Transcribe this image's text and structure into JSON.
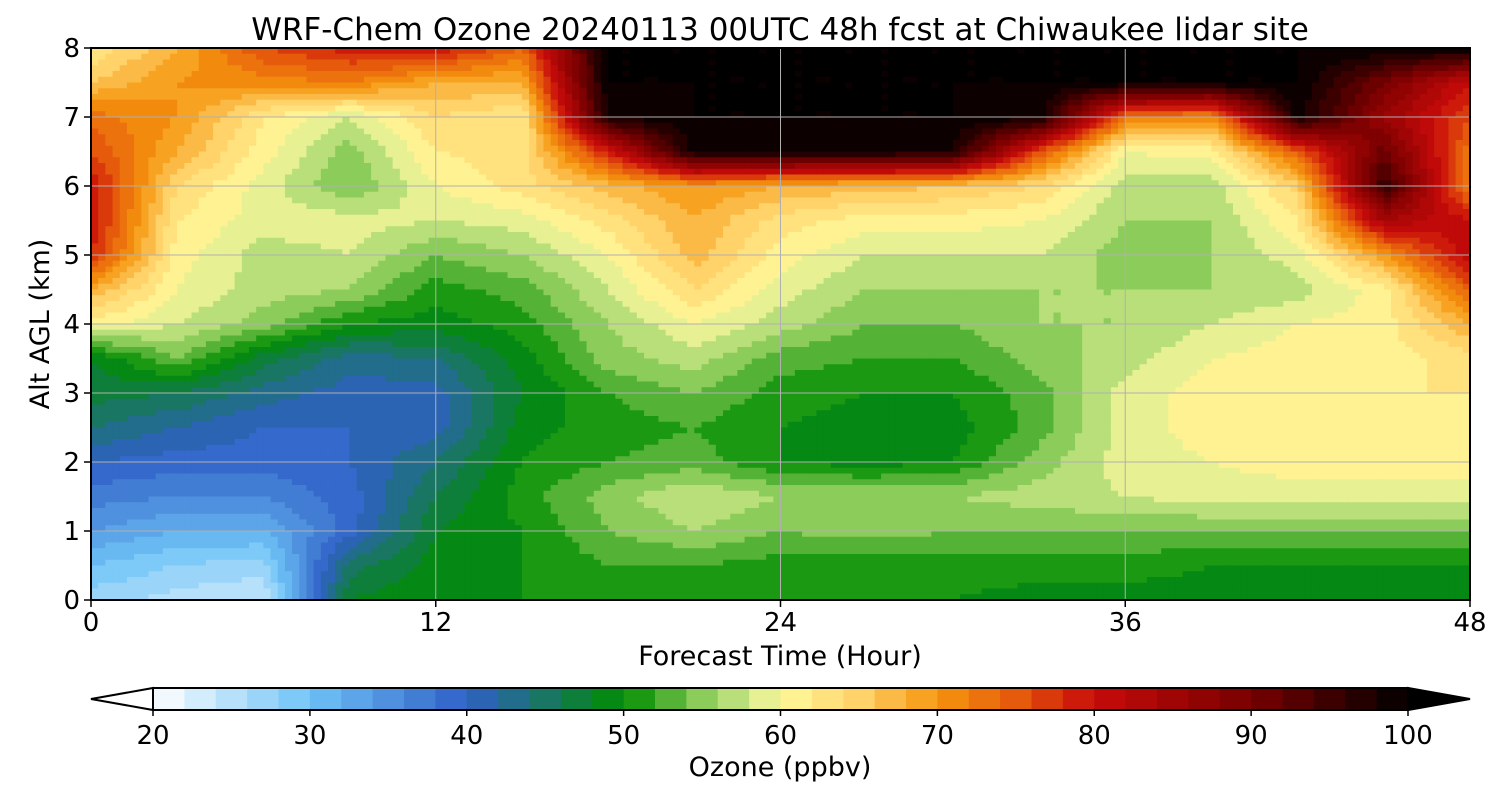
{
  "chart_data": {
    "type": "heatmap",
    "title": "WRF-Chem Ozone  20240113 00UTC 48h fcst at Chiwaukee lidar site",
    "xlabel": "Forecast Time (Hour)",
    "ylabel": "Alt AGL (km)",
    "xlim": [
      0,
      48
    ],
    "ylim": [
      0,
      8
    ],
    "x_ticks": [
      "0",
      "12",
      "24",
      "36",
      "48"
    ],
    "y_ticks": [
      "0",
      "1",
      "2",
      "3",
      "4",
      "5",
      "6",
      "7",
      "8"
    ],
    "grid": true,
    "x": [
      0,
      3,
      6,
      9,
      12,
      15,
      18,
      21,
      24,
      27,
      30,
      33,
      36,
      39,
      42,
      45,
      48
    ],
    "y": [
      0,
      0.5,
      1,
      1.5,
      2,
      2.5,
      3,
      3.5,
      4,
      4.5,
      5,
      5.5,
      6,
      6.5,
      7,
      7.5,
      8
    ],
    "z": [
      [
        27,
        25,
        24,
        48,
        50,
        50,
        51,
        51,
        50,
        50,
        50,
        49,
        49,
        49,
        49,
        49,
        49
      ],
      [
        30,
        28,
        27,
        45,
        49,
        50,
        52,
        52,
        51,
        51,
        51,
        51,
        51,
        50,
        50,
        50,
        50
      ],
      [
        34,
        32,
        32,
        39,
        48,
        50,
        54,
        56,
        54,
        55,
        54,
        54,
        54,
        54,
        54,
        54,
        54
      ],
      [
        37,
        36,
        36,
        39,
        46,
        51,
        55,
        58,
        56,
        56,
        56,
        57,
        58,
        59,
        59,
        59,
        59
      ],
      [
        40,
        39,
        39,
        40,
        44,
        50,
        52,
        53,
        50,
        49,
        50,
        55,
        59,
        60,
        61,
        61,
        61
      ],
      [
        44,
        42,
        40,
        40,
        41,
        49,
        51,
        52,
        50,
        49,
        49,
        53,
        59,
        61,
        61,
        61,
        61
      ],
      [
        47,
        46,
        43,
        41,
        41,
        48,
        52,
        54,
        51,
        50,
        50,
        53,
        59,
        61,
        62,
        62,
        62
      ],
      [
        48,
        54,
        47,
        43,
        44,
        49,
        55,
        57,
        53,
        52,
        52,
        55,
        57,
        60,
        61,
        61,
        63
      ],
      [
        61,
        58,
        55,
        50,
        49,
        51,
        56,
        60,
        57,
        54,
        54,
        56,
        56,
        58,
        60,
        61,
        68
      ],
      [
        68,
        60,
        57,
        56,
        51,
        53,
        58,
        64,
        59,
        56,
        56,
        56,
        56,
        56,
        57,
        61,
        75
      ],
      [
        78,
        61,
        57,
        58,
        54,
        56,
        60,
        67,
        61,
        58,
        58,
        58,
        55,
        56,
        59,
        70,
        82
      ],
      [
        80,
        62,
        59,
        59,
        58,
        59,
        63,
        68,
        63,
        61,
        61,
        60,
        56,
        56,
        62,
        84,
        80
      ],
      [
        80,
        64,
        59,
        54,
        60,
        63,
        67,
        70,
        68,
        67,
        66,
        64,
        57,
        57,
        65,
        96,
        72
      ],
      [
        76,
        68,
        61,
        55,
        62,
        63,
        79,
        99,
        99,
        99,
        98,
        76,
        60,
        61,
        75,
        91,
        73
      ],
      [
        73,
        70,
        62,
        58,
        64,
        62,
        98,
        100,
        100,
        100,
        100,
        99,
        73,
        71,
        99,
        86,
        76
      ],
      [
        66,
        70,
        71,
        72,
        68,
        68,
        100,
        100,
        100,
        100,
        100,
        100,
        100,
        100,
        100,
        90,
        80
      ],
      [
        62,
        68,
        76,
        79,
        80,
        74,
        100,
        100,
        100,
        100,
        100,
        100,
        100,
        100,
        100,
        100,
        100
      ]
    ],
    "colorbar": {
      "label": "Ozone  (ppbv)",
      "range": [
        20,
        100
      ],
      "ticks": [
        "20",
        "30",
        "40",
        "50",
        "60",
        "70",
        "80",
        "90",
        "100"
      ],
      "extend": "both",
      "colormap": [
        [
          20,
          "#ffffff"
        ],
        [
          30,
          "#6ec3f6"
        ],
        [
          40,
          "#2f5fc6"
        ],
        [
          50,
          "#008c00"
        ],
        [
          55,
          "#8ccc5a"
        ],
        [
          58,
          "#cfe88a"
        ],
        [
          60,
          "#fffa9c"
        ],
        [
          65,
          "#ffd26a"
        ],
        [
          70,
          "#f5960f"
        ],
        [
          75,
          "#e65a0c"
        ],
        [
          80,
          "#c80a0a"
        ],
        [
          90,
          "#780000"
        ],
        [
          100,
          "#000000"
        ]
      ]
    }
  }
}
